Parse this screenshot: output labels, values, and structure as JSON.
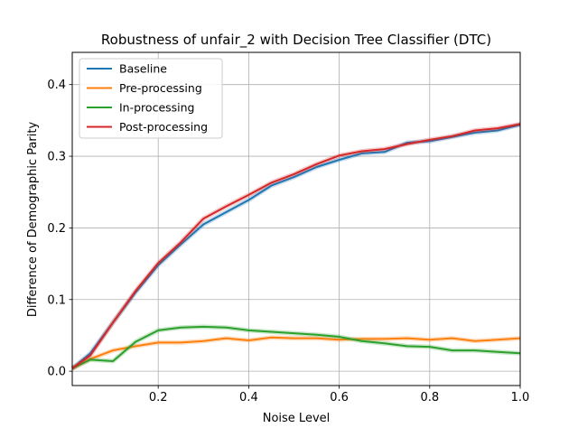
{
  "chart_data": {
    "type": "line",
    "title": "Robustness of unfair_2 with Decision Tree Classifier (DTC)",
    "xlabel": "Noise Level",
    "ylabel": "Difference of Demographic Parity",
    "xlim": [
      0.01,
      1.0
    ],
    "ylim": [
      -0.02,
      0.445
    ],
    "xticks": [
      0.2,
      0.4,
      0.6,
      0.8,
      1.0
    ],
    "xtick_labels": [
      "0.2",
      "0.4",
      "0.6",
      "0.8",
      "1.0"
    ],
    "yticks": [
      0.0,
      0.1,
      0.2,
      0.3,
      0.4
    ],
    "ytick_labels": [
      "0.0",
      "0.1",
      "0.2",
      "0.3",
      "0.4"
    ],
    "grid": true,
    "legend_position": "top-left",
    "x": [
      0.01,
      0.05,
      0.1,
      0.15,
      0.2,
      0.25,
      0.3,
      0.35,
      0.4,
      0.45,
      0.5,
      0.55,
      0.6,
      0.65,
      0.7,
      0.75,
      0.8,
      0.85,
      0.9,
      0.95,
      1.0
    ],
    "series": [
      {
        "name": "Baseline",
        "color": "#1f77b4",
        "values": [
          0.004,
          0.025,
          0.068,
          0.11,
          0.148,
          0.177,
          0.205,
          0.222,
          0.239,
          0.259,
          0.271,
          0.285,
          0.295,
          0.304,
          0.306,
          0.319,
          0.321,
          0.327,
          0.333,
          0.336,
          0.344
        ]
      },
      {
        "name": "Pre-processing",
        "color": "#ff7f0e",
        "values": [
          0.004,
          0.017,
          0.029,
          0.035,
          0.04,
          0.04,
          0.042,
          0.046,
          0.043,
          0.047,
          0.046,
          0.046,
          0.044,
          0.045,
          0.045,
          0.046,
          0.044,
          0.046,
          0.042,
          0.044,
          0.046
        ]
      },
      {
        "name": "In-processing",
        "color": "#2ca02c",
        "values": [
          0.004,
          0.016,
          0.014,
          0.041,
          0.057,
          0.061,
          0.062,
          0.061,
          0.057,
          0.055,
          0.053,
          0.051,
          0.048,
          0.042,
          0.039,
          0.035,
          0.034,
          0.029,
          0.029,
          0.027,
          0.025
        ]
      },
      {
        "name": "Post-processing",
        "color": "#d62728",
        "values": [
          0.004,
          0.022,
          0.068,
          0.112,
          0.151,
          0.18,
          0.213,
          0.23,
          0.246,
          0.263,
          0.275,
          0.289,
          0.301,
          0.307,
          0.31,
          0.317,
          0.323,
          0.328,
          0.336,
          0.339,
          0.345
        ]
      }
    ]
  }
}
